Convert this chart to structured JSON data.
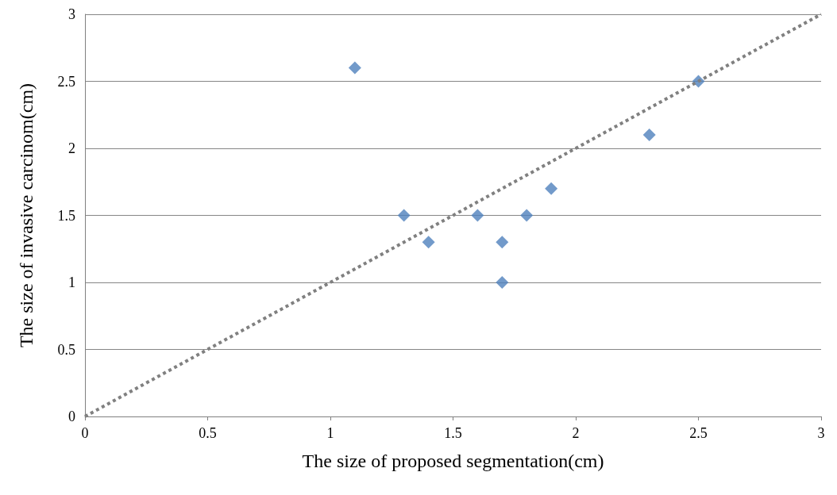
{
  "chart_data": {
    "type": "scatter",
    "xlabel": "The size of proposed segmentation(cm)",
    "ylabel": "The size of invasive carcinom(cm)",
    "xlim": [
      0,
      3
    ],
    "xticks": [
      0,
      0.5,
      1,
      1.5,
      2,
      2.5,
      3
    ],
    "ylim": [
      0,
      3
    ],
    "yticks": [
      0,
      0.5,
      1,
      1.5,
      2,
      2.5,
      3
    ],
    "grid": "y",
    "marker": "diamond",
    "series": [
      {
        "color": "#4f81bd",
        "x": [
          1.1,
          1.3,
          1.4,
          1.6,
          1.7,
          1.7,
          1.8,
          1.9,
          2.3,
          2.5
        ],
        "values": [
          2.6,
          1.5,
          1.3,
          1.5,
          1.3,
          1.0,
          1.5,
          1.7,
          2.1,
          2.5
        ]
      },
      {
        "type": "line",
        "color": "#808080",
        "x": [
          0,
          3
        ],
        "values": [
          0,
          3
        ],
        "marker": "none",
        "line_style": "dotted"
      }
    ]
  }
}
